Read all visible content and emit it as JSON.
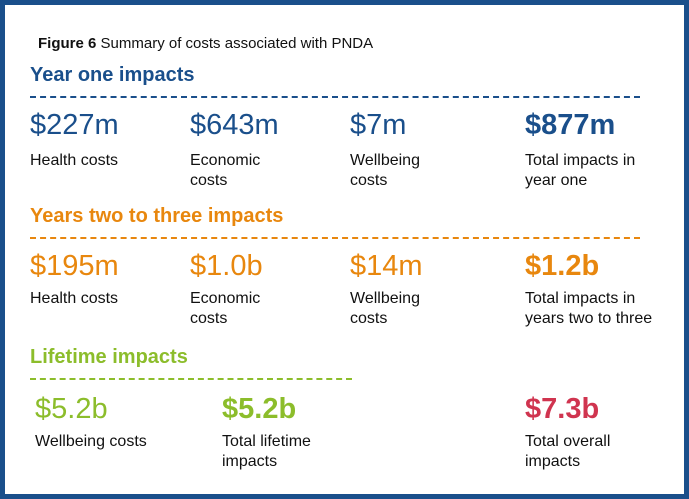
{
  "figure": {
    "label": "Figure 6",
    "caption": "Summary of costs associated with PNDA"
  },
  "colors": {
    "frame": "#1a4f8b",
    "year_one": "#1a4f8b",
    "years_two_three": "#e8870e",
    "lifetime": "#8cbd2b",
    "total_overall": "#d0344f"
  },
  "sections": {
    "year_one": {
      "title": "Year one impacts",
      "health": {
        "amount": "$227m",
        "label": "Health costs"
      },
      "economic": {
        "amount": "$643m",
        "label": "Economic costs"
      },
      "wellbeing": {
        "amount": "$7m",
        "label": "Wellbeing costs"
      },
      "total": {
        "amount": "$877m",
        "label": "Total impacts in year one"
      }
    },
    "years_two_three": {
      "title": "Years two to three impacts",
      "health": {
        "amount": "$195m",
        "label": "Health costs"
      },
      "economic": {
        "amount": "$1.0b",
        "label": "Economic costs"
      },
      "wellbeing": {
        "amount": "$14m",
        "label": "Wellbeing costs"
      },
      "total": {
        "amount": "$1.2b",
        "label": "Total impacts in years two to three"
      }
    },
    "lifetime": {
      "title": "Lifetime impacts",
      "wellbeing": {
        "amount": "$5.2b",
        "label": "Wellbeing costs"
      },
      "total": {
        "amount": "$5.2b",
        "label": "Total lifetime impacts"
      }
    },
    "overall": {
      "amount": "$7.3b",
      "label": "Total overall impacts"
    }
  }
}
